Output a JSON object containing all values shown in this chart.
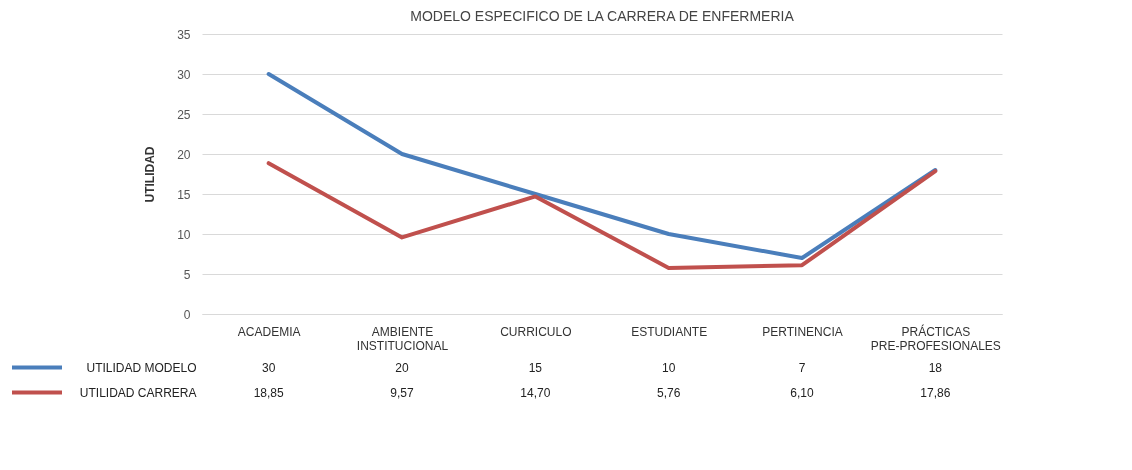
{
  "chart_data": {
    "type": "line",
    "title": "MODELO ESPECIFICO DE LA CARRERA DE ENFERMERIA",
    "ylabel": "UTILIDAD",
    "categories": [
      "ACADEMIA",
      "AMBIENTE INSTITUCIONAL",
      "CURRICULO",
      "ESTUDIANTE",
      "PERTINENCIA",
      "PRÁCTICAS PRE-PROFESIONALES"
    ],
    "series": [
      {
        "name": "UTILIDAD MODELO",
        "color": "#4a7ebb",
        "values": [
          30,
          20,
          15,
          10,
          7,
          18
        ],
        "value_labels": [
          "30",
          "20",
          "15",
          "10",
          "7",
          "18"
        ]
      },
      {
        "name": "UTILIDAD CARRERA",
        "color": "#c0504d",
        "values": [
          18.85,
          9.57,
          14.7,
          5.76,
          6.1,
          17.86
        ],
        "value_labels": [
          "18,85",
          "9,57",
          "14,70",
          "5,76",
          "6,10",
          "17,86"
        ]
      }
    ],
    "ylim": [
      0,
      35
    ],
    "yticks": [
      0,
      5,
      10,
      15,
      20,
      25,
      30,
      35
    ],
    "grid": "y",
    "legend": "bottom",
    "marker": "none",
    "line_style": "solid"
  }
}
